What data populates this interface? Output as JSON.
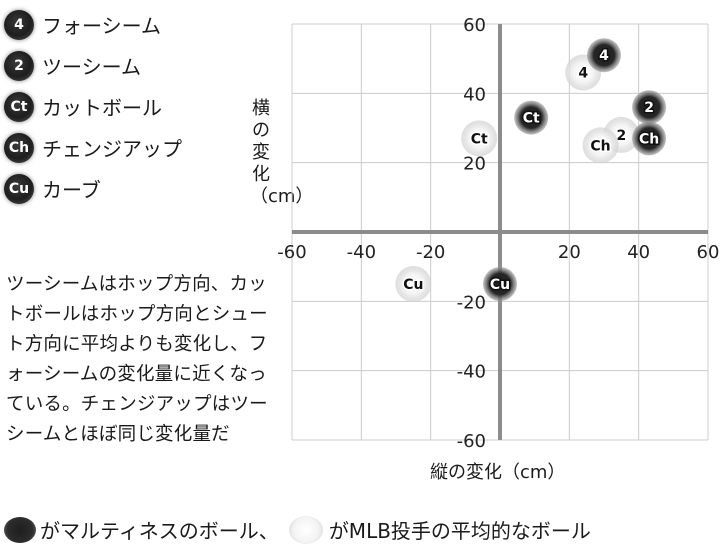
{
  "legend": {
    "items": [
      {
        "badge": "4",
        "label": "フォーシーム"
      },
      {
        "badge": "2",
        "label": "ツーシーム"
      },
      {
        "badge": "Ct",
        "label": "カットボール"
      },
      {
        "badge": "Ch",
        "label": "チェンジアップ"
      },
      {
        "badge": "Cu",
        "label": "カーブ"
      }
    ]
  },
  "note": "ツーシームはホップ方向、カットボールはホップ方向とシュート方向に平均よりも変化し、フォーシームの変化量に近くなっている。チェンジアップはツーシームとほぼ同じ変化量だ",
  "footer": {
    "dark_text": "がマルティネスのボール、",
    "light_text": "がMLB投手の平均的なボール"
  },
  "colors": {
    "dark_marker": "#222222",
    "light_marker": "#f2f2f2",
    "axis": "#8c8c8c",
    "grid": "#cccccc"
  },
  "chart_data": {
    "type": "scatter",
    "xlabel": "縦の変化（cm）",
    "ylabel": "横の変化（cm）",
    "xlim": [
      -60,
      60
    ],
    "ylim": [
      -60,
      60
    ],
    "x_ticks": [
      "-60",
      "-40",
      "-20",
      "20",
      "40",
      "60"
    ],
    "y_ticks": [
      "60",
      "40",
      "20",
      "-20",
      "-40",
      "-60"
    ],
    "grid": true,
    "series": [
      {
        "name": "マルティネス",
        "points": [
          {
            "label": "4",
            "x": 30,
            "y": 51
          },
          {
            "label": "2",
            "x": 43,
            "y": 36
          },
          {
            "label": "Ct",
            "x": 9,
            "y": 33
          },
          {
            "label": "Ch",
            "x": 43,
            "y": 27
          },
          {
            "label": "Cu",
            "x": 0,
            "y": -15
          }
        ]
      },
      {
        "name": "MLB平均",
        "points": [
          {
            "label": "4",
            "x": 24,
            "y": 46
          },
          {
            "label": "2",
            "x": 35,
            "y": 28
          },
          {
            "label": "Ct",
            "x": -6,
            "y": 27
          },
          {
            "label": "Ch",
            "x": 29,
            "y": 25
          },
          {
            "label": "Cu",
            "x": -25,
            "y": -15
          }
        ]
      }
    ]
  }
}
